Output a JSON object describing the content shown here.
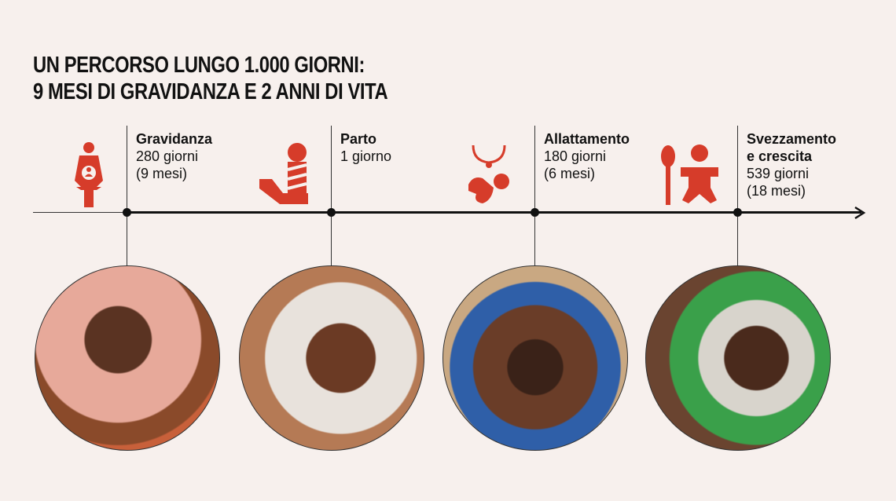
{
  "title": {
    "line1": "UN PERCORSO LUNGO 1.000 GIORNI:",
    "line2": "9 MESI DI GRAVIDANZA E 2 ANNI DI VITA"
  },
  "accent_color": "#d63c2a",
  "stages": [
    {
      "name": "Gravidanza",
      "line1": "280 giorni",
      "line2": "(9 mesi)",
      "icon": "pregnant-woman-icon"
    },
    {
      "name": "Parto",
      "line1": "1 giorno",
      "line2": "",
      "icon": "baby-in-hand-icon"
    },
    {
      "name": "Allattamento",
      "line1": "180 giorni",
      "line2": "(6 mesi)",
      "icon": "breastfeeding-icon"
    },
    {
      "name": "Svezzamento",
      "name2": "e crescita",
      "line1": "539 giorni",
      "line2": "(18 mesi)",
      "icon": "spoon-and-child-icon"
    }
  ]
}
